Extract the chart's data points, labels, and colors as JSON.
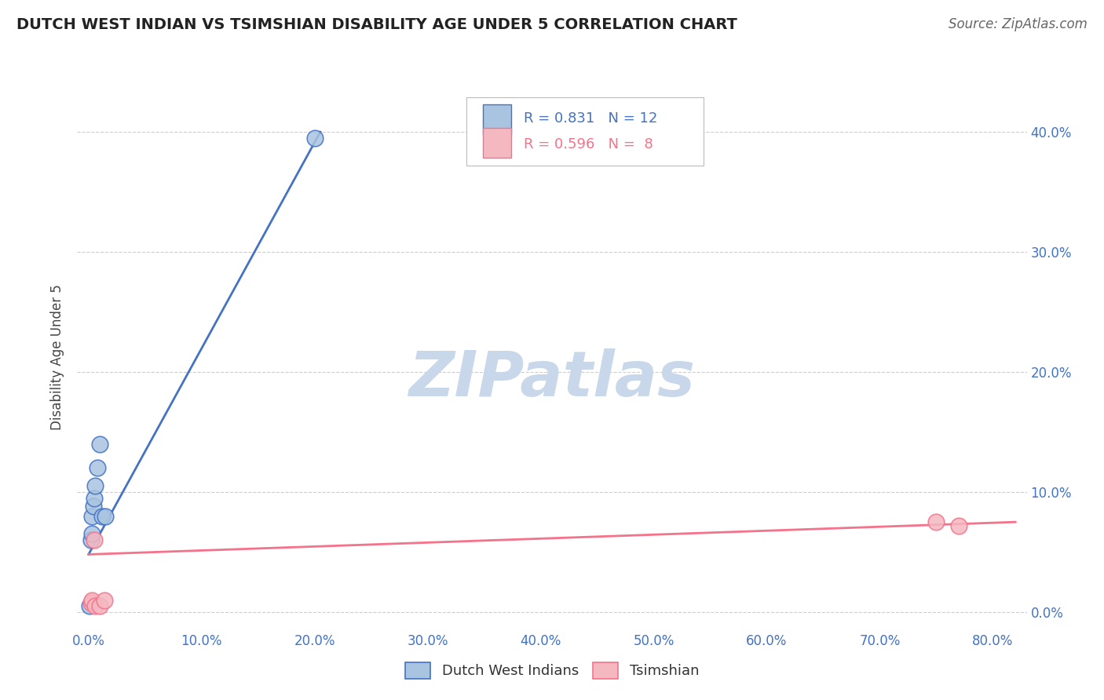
{
  "title": "DUTCH WEST INDIAN VS TSIMSHIAN DISABILITY AGE UNDER 5 CORRELATION CHART",
  "source": "Source: ZipAtlas.com",
  "ylabel": "Disability Age Under 5",
  "xlim": [
    -0.01,
    0.83
  ],
  "ylim": [
    -0.015,
    0.44
  ],
  "xticks": [
    0.0,
    0.1,
    0.2,
    0.3,
    0.4,
    0.5,
    0.6,
    0.7,
    0.8
  ],
  "xticklabels": [
    "0.0%",
    "10.0%",
    "20.0%",
    "30.0%",
    "40.0%",
    "50.0%",
    "60.0%",
    "70.0%",
    "80.0%"
  ],
  "yticks": [
    0.0,
    0.1,
    0.2,
    0.3,
    0.4
  ],
  "yticklabels_right": [
    "0.0%",
    "10.0%",
    "20.0%",
    "30.0%",
    "40.0%"
  ],
  "grid_color": "#cccccc",
  "background_color": "#ffffff",
  "blue_color": "#a8c4e0",
  "blue_edge_color": "#4472c4",
  "blue_line_color": "#4472c4",
  "pink_color": "#f4b8c1",
  "pink_edge_color": "#f4728a",
  "pink_line_color": "#f4728a",
  "blue_r": 0.831,
  "blue_n": 12,
  "pink_r": 0.596,
  "pink_n": 8,
  "blue_points_x": [
    0.001,
    0.002,
    0.003,
    0.003,
    0.004,
    0.005,
    0.006,
    0.008,
    0.01,
    0.012,
    0.015,
    0.2
  ],
  "blue_points_y": [
    0.005,
    0.06,
    0.065,
    0.08,
    0.088,
    0.095,
    0.105,
    0.12,
    0.14,
    0.08,
    0.08,
    0.395
  ],
  "pink_points_x": [
    0.002,
    0.003,
    0.005,
    0.006,
    0.01,
    0.014,
    0.75,
    0.77
  ],
  "pink_points_y": [
    0.008,
    0.01,
    0.06,
    0.005,
    0.005,
    0.01,
    0.075,
    0.072
  ],
  "blue_trend_x": [
    0.0,
    0.205
  ],
  "blue_trend_y": [
    0.048,
    0.4
  ],
  "pink_trend_x": [
    0.0,
    0.82
  ],
  "pink_trend_y": [
    0.048,
    0.075
  ],
  "watermark": "ZIPatlas",
  "watermark_color": "#c8d8ea",
  "tick_color": "#4472c4",
  "title_fontsize": 14,
  "source_fontsize": 12,
  "tick_fontsize": 12,
  "ylabel_fontsize": 12,
  "legend_box_facecolor": "#ffffff",
  "legend_box_edgecolor": "#cccccc",
  "legend_r_blue_color": "#4472c4",
  "legend_r_pink_color": "#f4728a",
  "bottom_legend_label_blue": "Dutch West Indians",
  "bottom_legend_label_pink": "Tsimshian"
}
